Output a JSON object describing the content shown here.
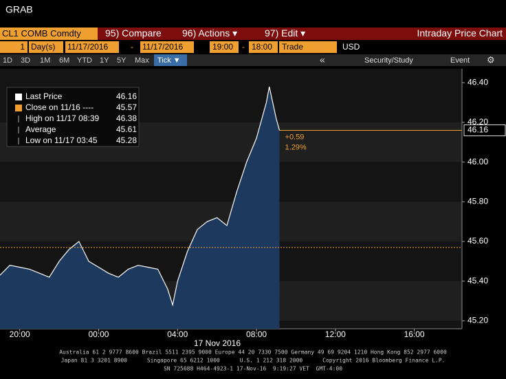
{
  "window": {
    "title": "GRAB"
  },
  "toolbar": {
    "ticker": "CL1 COMB Comdty",
    "buttons": [
      "95) Compare",
      "96) Actions ▾",
      "97) Edit ▾"
    ],
    "title": "Intraday Price Chart"
  },
  "range_bar": {
    "period": "1",
    "unit": "Day(s)",
    "start_date": "11/17/2016",
    "dash": "-",
    "end_date": "11/17/2016",
    "start_time": "19:00",
    "end_time": "18:00",
    "field": "Trade",
    "currency": "USD"
  },
  "period_bar": {
    "periods": [
      "1D",
      "3D",
      "1M",
      "6M",
      "YTD",
      "1Y",
      "5Y",
      "Max"
    ],
    "selected": "Tick ▼",
    "back": "«",
    "security": "Security/Study",
    "event": "Event"
  },
  "chart_data": {
    "type": "line",
    "x": [
      "19:00",
      "19:30",
      "20:00",
      "20:30",
      "21:00",
      "21:30",
      "22:00",
      "22:30",
      "23:00",
      "23:30",
      "00:00",
      "00:30",
      "01:00",
      "01:30",
      "02:00",
      "02:30",
      "03:00",
      "03:30",
      "03:45",
      "04:00",
      "04:30",
      "05:00",
      "05:30",
      "06:00",
      "06:30",
      "07:00",
      "07:30",
      "08:00",
      "08:30",
      "08:39",
      "09:00",
      "09:10"
    ],
    "values": [
      45.43,
      45.48,
      45.47,
      45.46,
      45.44,
      45.42,
      45.5,
      45.56,
      45.6,
      45.5,
      45.47,
      45.44,
      45.42,
      45.46,
      45.48,
      45.47,
      45.46,
      45.36,
      45.28,
      45.4,
      45.55,
      45.66,
      45.7,
      45.72,
      45.68,
      45.85,
      46.0,
      46.12,
      46.3,
      46.38,
      46.22,
      46.16
    ],
    "color": "#ffffff",
    "area_color": "#1d3a5e",
    "xlim": [
      "19:00",
      "18:00"
    ],
    "xticks": [
      "20:00",
      "00:00",
      "04:00",
      "08:00",
      "12:00",
      "16:00"
    ],
    "x_label": "17 Nov 2016",
    "ylim": [
      45.16,
      46.47
    ],
    "yticks": [
      {
        "value": 45.2,
        "label": "45.20"
      },
      {
        "value": 45.4,
        "label": "45.40"
      },
      {
        "value": 45.6,
        "label": "45.60"
      },
      {
        "value": 45.8,
        "label": "45.80"
      },
      {
        "value": 46.0,
        "label": "46.00"
      },
      {
        "value": 46.2,
        "label": "46.20"
      },
      {
        "value": 46.4,
        "label": "46.40"
      }
    ],
    "last_price": 46.16,
    "last_color": "#f0a030",
    "close_price": 45.57,
    "close_color": "#f0a030",
    "change": "+0.59",
    "change_pct": "1.29%",
    "legend": [
      {
        "label": "Last Price",
        "value": 46.16
      },
      {
        "label": "Close on 11/16 ----",
        "value": 45.57
      },
      {
        "label": "High on 11/17 08:39",
        "value": 46.38
      },
      {
        "label": "Average",
        "value": 45.61
      },
      {
        "label": "Low on 11/17 03:45",
        "value": 45.28
      }
    ]
  },
  "footer": {
    "lines": [
      "Australia 61 2 9777 8600 Brazil 5511 2395 9000 Europe 44 20 7330 7500 Germany 49 69 9204 1210 Hong Kong 852 2977 6000",
      "Japan 81 3 3201 8900      Singapore 65 6212 1000      U.S. 1 212 318 2000      Copyright 2016 Bloomberg Finance L.P.",
      "SN 725688 H464-4923-1 17-Nov-16  9:19:27 VET  GMT-4:00"
    ]
  }
}
